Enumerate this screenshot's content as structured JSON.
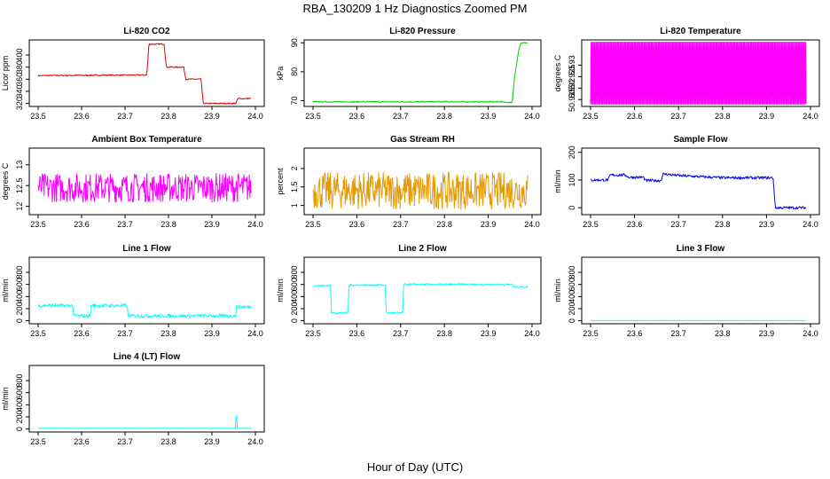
{
  "figure": {
    "title": "RBA_130209  1 Hz Diagnostics Zoomed PM",
    "xlabel": "Hour of Day (UTC)"
  },
  "chart_data": [
    {
      "type": "line",
      "title": "Li-820 CO2",
      "ylabel": "Licor ppm",
      "color": "#dd0000",
      "xlim": [
        23.5,
        24.0
      ],
      "ylim": [
        315,
        425
      ],
      "xticks": [
        "23.5",
        "23.6",
        "23.7",
        "23.8",
        "23.9",
        "24.0"
      ],
      "yticks": [
        320,
        340,
        360,
        380,
        400
      ],
      "x": [
        23.5,
        23.75,
        23.755,
        23.79,
        23.795,
        23.835,
        23.84,
        23.875,
        23.88,
        23.955,
        23.96,
        23.99
      ],
      "y": [
        366,
        367,
        418,
        418,
        380,
        380,
        360,
        360,
        320,
        320,
        328,
        328
      ],
      "noise": 1
    },
    {
      "type": "line",
      "title": "Li-820 Pressure",
      "ylabel": "kPa",
      "color": "#00cc00",
      "xlim": [
        23.5,
        24.0
      ],
      "ylim": [
        68,
        91
      ],
      "xticks": [
        "23.5",
        "23.6",
        "23.7",
        "23.8",
        "23.9",
        "24.0"
      ],
      "yticks": [
        70,
        80,
        90
      ],
      "x": [
        23.5,
        23.935,
        23.94,
        23.955,
        23.96,
        23.97,
        23.975,
        23.99
      ],
      "y": [
        69.6,
        69.6,
        69.4,
        69.4,
        78,
        88,
        90,
        90
      ],
      "noise": 0.2
    },
    {
      "type": "line",
      "title": "Li-820 Temperature",
      "ylabel": "degrees C",
      "color": "#ff00ff",
      "xlim": [
        23.5,
        24.0
      ],
      "ylim": [
        50.912,
        50.941
      ],
      "xticks": [
        "23.5",
        "23.6",
        "23.7",
        "23.8",
        "23.9",
        "24.0"
      ],
      "yticks": [
        50.915,
        50.92,
        50.925,
        50.93
      ],
      "x": [
        23.5,
        23.99
      ],
      "y": [
        50.913,
        50.94
      ],
      "noise": 0,
      "oscillate": true
    },
    {
      "type": "line",
      "title": "Ambient Box Temperature",
      "ylabel": "degrees C",
      "color": "#ff00ff",
      "xlim": [
        23.5,
        24.0
      ],
      "ylim": [
        11.8,
        13.4
      ],
      "xticks": [
        "23.5",
        "23.6",
        "23.7",
        "23.8",
        "23.9",
        "24.0"
      ],
      "yticks": [
        12.0,
        12.5,
        13.0
      ],
      "x": [
        23.5,
        23.99
      ],
      "y": [
        12.45,
        12.45
      ],
      "noise": 0.35
    },
    {
      "type": "line",
      "title": "Gas Stream RH",
      "ylabel": "percent",
      "color": "#e69900",
      "xlim": [
        23.5,
        24.0
      ],
      "ylim": [
        0.75,
        2.55
      ],
      "xticks": [
        "23.5",
        "23.6",
        "23.7",
        "23.8",
        "23.9",
        "24.0"
      ],
      "yticks": [
        1.0,
        1.5,
        2.0
      ],
      "x": [
        23.5,
        23.99
      ],
      "y": [
        1.4,
        1.4
      ],
      "noise": 0.5
    },
    {
      "type": "line",
      "title": "Sample Flow",
      "ylabel": "ml/min",
      "color": "#0000ee",
      "xlim": [
        23.5,
        24.0
      ],
      "ylim": [
        -25,
        215
      ],
      "xticks": [
        "23.5",
        "23.6",
        "23.7",
        "23.8",
        "23.9",
        "24.0"
      ],
      "yticks": [
        0,
        100,
        200
      ],
      "x": [
        23.5,
        23.54,
        23.545,
        23.58,
        23.585,
        23.62,
        23.625,
        23.66,
        23.665,
        23.7,
        23.8,
        23.915,
        23.92,
        23.99
      ],
      "y": [
        100,
        100,
        118,
        118,
        110,
        110,
        98,
        98,
        122,
        116,
        108,
        108,
        0,
        0
      ],
      "noise": 5
    },
    {
      "type": "line",
      "title": "Line 1 Flow",
      "ylabel": "ml/min",
      "color": "#00ffff",
      "xlim": [
        23.5,
        24.0
      ],
      "ylim": [
        -50,
        1050
      ],
      "xticks": [
        "23.5",
        "23.6",
        "23.7",
        "23.8",
        "23.9",
        "24.0"
      ],
      "yticks": [
        0,
        200,
        400,
        600,
        800
      ],
      "x": [
        23.5,
        23.58,
        23.582,
        23.62,
        23.622,
        23.705,
        23.707,
        23.955,
        23.957,
        23.99
      ],
      "y": [
        250,
        250,
        80,
        80,
        250,
        250,
        80,
        80,
        230,
        230
      ],
      "noise": 30
    },
    {
      "type": "line",
      "title": "Line 2 Flow",
      "ylabel": "ml/min",
      "color": "#00ffff",
      "xlim": [
        23.5,
        24.0
      ],
      "ylim": [
        -50,
        1050
      ],
      "xticks": [
        "23.5",
        "23.6",
        "23.7",
        "23.8",
        "23.9",
        "24.0"
      ],
      "yticks": [
        0,
        200,
        400,
        600,
        800
      ],
      "x": [
        23.5,
        23.54,
        23.542,
        23.58,
        23.582,
        23.665,
        23.667,
        23.705,
        23.707,
        23.955,
        23.957,
        23.99
      ],
      "y": [
        580,
        580,
        130,
        130,
        590,
        590,
        130,
        130,
        600,
        600,
        560,
        560
      ],
      "noise": 15
    },
    {
      "type": "line",
      "title": "Line 3 Flow",
      "ylabel": "ml/min",
      "color": "#00ffff",
      "xlim": [
        23.5,
        24.0
      ],
      "ylim": [
        -50,
        1050
      ],
      "xticks": [
        "23.5",
        "23.6",
        "23.7",
        "23.8",
        "23.9",
        "24.0"
      ],
      "yticks": [
        0,
        200,
        400,
        600,
        800
      ],
      "x": [
        23.5,
        23.99
      ],
      "y": [
        3,
        3
      ],
      "noise": 2
    },
    {
      "type": "line",
      "title": "Line 4 (LT) Flow",
      "ylabel": "ml/min",
      "color": "#00ffff",
      "xlim": [
        23.5,
        24.0
      ],
      "ylim": [
        -50,
        1050
      ],
      "xticks": [
        "23.5",
        "23.6",
        "23.7",
        "23.8",
        "23.9",
        "24.0"
      ],
      "yticks": [
        0,
        200,
        400,
        600,
        800
      ],
      "x": [
        23.5,
        23.954,
        23.955,
        23.957,
        23.958,
        23.99
      ],
      "y": [
        10,
        10,
        220,
        220,
        10,
        10
      ],
      "noise": 4
    }
  ]
}
